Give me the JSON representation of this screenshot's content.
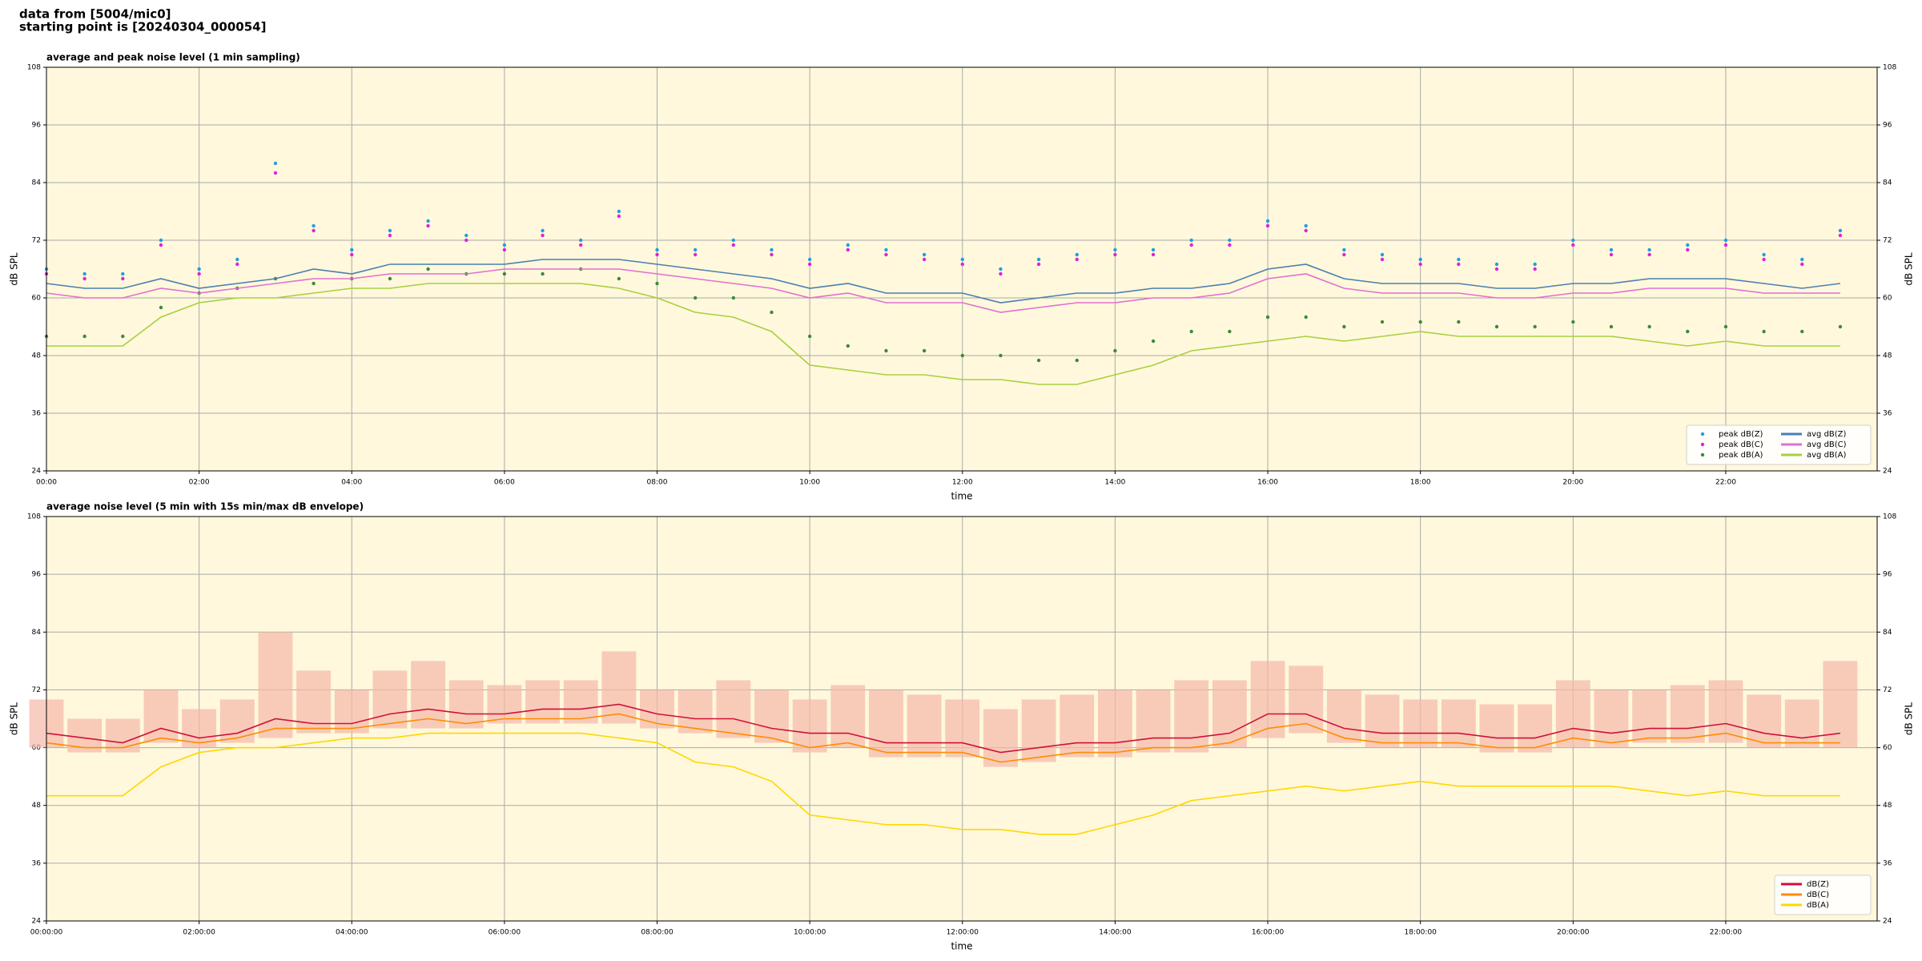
{
  "header": {
    "lines": [
      "data from [5004/mic0]",
      "starting point is [20240304_000054]"
    ]
  },
  "chart_data": [
    {
      "type": "line",
      "title": "average and peak noise level (1 min sampling)",
      "x_label": "time",
      "y_label": "dB SPL",
      "x": [
        0,
        30,
        60,
        90,
        120,
        150,
        180,
        210,
        240,
        270,
        300,
        330,
        360,
        390,
        420,
        450,
        480,
        510,
        540,
        570,
        600,
        630,
        660,
        690,
        720,
        750,
        780,
        810,
        840,
        870,
        900,
        930,
        960,
        990,
        1020,
        1050,
        1080,
        1110,
        1140,
        1170,
        1200,
        1230,
        1260,
        1290,
        1320,
        1350,
        1380,
        1410
      ],
      "xlim": [
        0,
        1439
      ],
      "xticks": [
        {
          "value": 0,
          "label": "00:00"
        },
        {
          "value": 120,
          "label": "02:00"
        },
        {
          "value": 240,
          "label": "04:00"
        },
        {
          "value": 360,
          "label": "06:00"
        },
        {
          "value": 480,
          "label": "08:00"
        },
        {
          "value": 600,
          "label": "10:00"
        },
        {
          "value": 720,
          "label": "12:00"
        },
        {
          "value": 840,
          "label": "14:00"
        },
        {
          "value": 960,
          "label": "16:00"
        },
        {
          "value": 1080,
          "label": "18:00"
        },
        {
          "value": 1200,
          "label": "20:00"
        },
        {
          "value": 1320,
          "label": "22:00"
        }
      ],
      "ylim": [
        24,
        108
      ],
      "yticks": [
        24,
        36,
        48,
        60,
        72,
        84,
        96,
        108
      ],
      "grid": true,
      "legend": "lower right",
      "legend_ncol": 2,
      "background": "#fff8dc",
      "series": [
        {
          "name": "peak dB(Z)",
          "kind": "scatter",
          "color": "#1f9fe0",
          "values": [
            66,
            65,
            65,
            72,
            66,
            68,
            88,
            75,
            70,
            74,
            76,
            73,
            71,
            74,
            72,
            78,
            70,
            70,
            72,
            70,
            68,
            71,
            70,
            69,
            68,
            66,
            68,
            69,
            70,
            70,
            72,
            72,
            76,
            75,
            70,
            69,
            68,
            68,
            67,
            67,
            72,
            70,
            70,
            71,
            72,
            69,
            68,
            74
          ]
        },
        {
          "name": "peak dB(C)",
          "kind": "scatter",
          "color": "#e020e0",
          "values": [
            65,
            64,
            64,
            71,
            65,
            67,
            86,
            74,
            69,
            73,
            75,
            72,
            70,
            73,
            71,
            77,
            69,
            69,
            71,
            69,
            67,
            70,
            69,
            68,
            67,
            65,
            67,
            68,
            69,
            69,
            71,
            71,
            75,
            74,
            69,
            68,
            67,
            67,
            66,
            66,
            71,
            69,
            69,
            70,
            71,
            68,
            67,
            73
          ]
        },
        {
          "name": "peak dB(A)",
          "kind": "scatter",
          "color": "#3a8a3a",
          "values": [
            52,
            52,
            52,
            58,
            61,
            62,
            64,
            63,
            64,
            64,
            66,
            65,
            65,
            65,
            66,
            64,
            63,
            60,
            60,
            57,
            52,
            50,
            49,
            49,
            48,
            48,
            47,
            47,
            49,
            51,
            53,
            53,
            56,
            56,
            54,
            55,
            55,
            55,
            54,
            54,
            55,
            54,
            54,
            53,
            54,
            53,
            53,
            54
          ]
        },
        {
          "name": "avg dB(Z)",
          "kind": "line",
          "color": "#4a7fb0",
          "values": [
            63,
            62,
            62,
            64,
            62,
            63,
            64,
            66,
            65,
            67,
            67,
            67,
            67,
            68,
            68,
            68,
            67,
            66,
            65,
            64,
            62,
            63,
            61,
            61,
            61,
            59,
            60,
            61,
            61,
            62,
            62,
            63,
            66,
            67,
            64,
            63,
            63,
            63,
            62,
            62,
            63,
            63,
            64,
            64,
            64,
            63,
            62,
            63
          ]
        },
        {
          "name": "avg dB(C)",
          "kind": "line",
          "color": "#e070d0",
          "values": [
            61,
            60,
            60,
            62,
            61,
            62,
            63,
            64,
            64,
            65,
            65,
            65,
            66,
            66,
            66,
            66,
            65,
            64,
            63,
            62,
            60,
            61,
            59,
            59,
            59,
            57,
            58,
            59,
            59,
            60,
            60,
            61,
            64,
            65,
            62,
            61,
            61,
            61,
            60,
            60,
            61,
            61,
            62,
            62,
            62,
            61,
            61,
            61
          ]
        },
        {
          "name": "avg dB(A)",
          "kind": "line",
          "color": "#a8d040",
          "values": [
            50,
            50,
            50,
            56,
            59,
            60,
            60,
            61,
            62,
            62,
            63,
            63,
            63,
            63,
            63,
            62,
            60,
            57,
            56,
            53,
            46,
            45,
            44,
            44,
            43,
            43,
            42,
            42,
            44,
            46,
            49,
            50,
            51,
            52,
            51,
            52,
            53,
            52,
            52,
            52,
            52,
            52,
            51,
            50,
            51,
            50,
            50,
            50
          ]
        }
      ]
    },
    {
      "type": "line",
      "title": "average noise level (5 min with 15s min/max dB envelope)",
      "x_label": "time",
      "y_label": "dB SPL",
      "x": [
        0,
        30,
        60,
        90,
        120,
        150,
        180,
        210,
        240,
        270,
        300,
        330,
        360,
        390,
        420,
        450,
        480,
        510,
        540,
        570,
        600,
        630,
        660,
        690,
        720,
        750,
        780,
        810,
        840,
        870,
        900,
        930,
        960,
        990,
        1020,
        1050,
        1080,
        1110,
        1140,
        1170,
        1200,
        1230,
        1260,
        1290,
        1320,
        1350,
        1380,
        1410
      ],
      "xlim": [
        0,
        1439
      ],
      "xticks": [
        {
          "value": 0,
          "label": "00:00:00"
        },
        {
          "value": 120,
          "label": "02:00:00"
        },
        {
          "value": 240,
          "label": "04:00:00"
        },
        {
          "value": 360,
          "label": "06:00:00"
        },
        {
          "value": 480,
          "label": "08:00:00"
        },
        {
          "value": 600,
          "label": "10:00:00"
        },
        {
          "value": 720,
          "label": "12:00:00"
        },
        {
          "value": 840,
          "label": "14:00:00"
        },
        {
          "value": 960,
          "label": "16:00:00"
        },
        {
          "value": 1080,
          "label": "18:00:00"
        },
        {
          "value": 1200,
          "label": "20:00:00"
        },
        {
          "value": 1320,
          "label": "22:00:00"
        }
      ],
      "ylim": [
        24,
        108
      ],
      "yticks": [
        24,
        36,
        48,
        60,
        72,
        84,
        96,
        108
      ],
      "grid": true,
      "legend": "lower right",
      "legend_ncol": 1,
      "background": "#fff8dc",
      "envelope": {
        "color": "#f5b8a8",
        "upper": [
          70,
          66,
          66,
          72,
          68,
          70,
          84,
          76,
          72,
          76,
          78,
          74,
          73,
          74,
          74,
          80,
          72,
          72,
          74,
          72,
          70,
          73,
          72,
          71,
          70,
          68,
          70,
          71,
          72,
          72,
          74,
          74,
          78,
          77,
          72,
          71,
          70,
          70,
          69,
          69,
          74,
          72,
          72,
          73,
          74,
          71,
          70,
          78
        ],
        "lower": [
          60,
          59,
          59,
          61,
          60,
          61,
          62,
          63,
          63,
          64,
          64,
          64,
          65,
          65,
          65,
          65,
          64,
          63,
          62,
          61,
          59,
          60,
          58,
          58,
          58,
          56,
          57,
          58,
          58,
          59,
          59,
          60,
          62,
          63,
          61,
          60,
          60,
          60,
          59,
          59,
          60,
          60,
          61,
          61,
          61,
          60,
          60,
          60
        ]
      },
      "series": [
        {
          "name": "dB(Z)",
          "kind": "line",
          "color": "#d0103a",
          "values": [
            63,
            62,
            61,
            64,
            62,
            63,
            66,
            65,
            65,
            67,
            68,
            67,
            67,
            68,
            68,
            69,
            67,
            66,
            66,
            64,
            63,
            63,
            61,
            61,
            61,
            59,
            60,
            61,
            61,
            62,
            62,
            63,
            67,
            67,
            64,
            63,
            63,
            63,
            62,
            62,
            64,
            63,
            64,
            64,
            65,
            63,
            62,
            63
          ]
        },
        {
          "name": "dB(C)",
          "kind": "line",
          "color": "#ff8c00",
          "values": [
            61,
            60,
            60,
            62,
            61,
            62,
            64,
            64,
            64,
            65,
            66,
            65,
            66,
            66,
            66,
            67,
            65,
            64,
            63,
            62,
            60,
            61,
            59,
            59,
            59,
            57,
            58,
            59,
            59,
            60,
            60,
            61,
            64,
            65,
            62,
            61,
            61,
            61,
            60,
            60,
            62,
            61,
            62,
            62,
            63,
            61,
            61,
            61
          ]
        },
        {
          "name": "dB(A)",
          "kind": "line",
          "color": "#ffd700",
          "values": [
            50,
            50,
            50,
            56,
            59,
            60,
            60,
            61,
            62,
            62,
            63,
            63,
            63,
            63,
            63,
            62,
            61,
            57,
            56,
            53,
            46,
            45,
            44,
            44,
            43,
            43,
            42,
            42,
            44,
            46,
            49,
            50,
            51,
            52,
            51,
            52,
            53,
            52,
            52,
            52,
            52,
            52,
            51,
            50,
            51,
            50,
            50,
            50
          ]
        }
      ]
    }
  ]
}
